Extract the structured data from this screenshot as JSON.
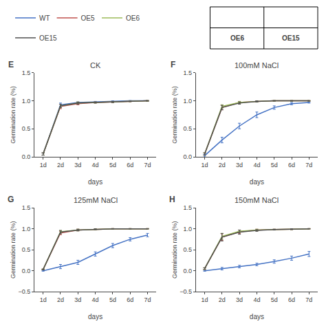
{
  "chart_data": [
    {
      "type": "line",
      "title": "CK",
      "annotations": [
        "E"
      ],
      "x": [
        1,
        2,
        3,
        4,
        5,
        6,
        7
      ],
      "xlabel": "days",
      "ylabel": "Germination rate (%)",
      "xlim": [
        0.5,
        7.5
      ],
      "xticks": [
        {
          "value": 1,
          "label": "1d"
        },
        {
          "value": 2,
          "label": "2d"
        },
        {
          "value": 3,
          "label": "3d"
        },
        {
          "value": 4,
          "label": "4d"
        },
        {
          "value": 5,
          "label": "5d"
        },
        {
          "value": 6,
          "label": "6d"
        },
        {
          "value": 7,
          "label": "7d"
        }
      ],
      "ylim": [
        0,
        1.5
      ],
      "yticks": [
        {
          "value": 0,
          "label": "0.0"
        },
        0.5,
        {
          "value": 1.0,
          "label": "1.0"
        },
        1.5
      ],
      "grid": false,
      "legend": "top",
      "series": [
        {
          "name": "WT",
          "color": "#4472C4",
          "values": [
            0.05,
            0.93,
            0.97,
            0.98,
            0.99,
            1.0,
            1.0
          ],
          "errors": [
            0.02,
            0.03,
            0.01,
            0.01,
            0.01,
            0.005,
            0.005
          ]
        },
        {
          "name": "OE5",
          "color": "#C0504D",
          "values": [
            0.05,
            0.9,
            0.95,
            0.97,
            0.98,
            0.99,
            1.0
          ],
          "errors": [
            0.02,
            0.04,
            0.02,
            0.01,
            0.01,
            0.005,
            0.005
          ]
        },
        {
          "name": "OE6",
          "color": "#9BBB59",
          "values": [
            0.05,
            0.91,
            0.96,
            0.97,
            0.98,
            0.99,
            1.0
          ],
          "errors": [
            0.02,
            0.03,
            0.02,
            0.01,
            0.01,
            0.005,
            0.005
          ]
        },
        {
          "name": "OE15",
          "color": "#4F4F4F",
          "values": [
            0.05,
            0.91,
            0.96,
            0.97,
            0.98,
            0.99,
            1.0
          ],
          "errors": [
            0.02,
            0.03,
            0.02,
            0.01,
            0.01,
            0.005,
            0.005
          ]
        }
      ]
    },
    {
      "type": "line",
      "title": "100mM NaCl",
      "annotations": [
        "F"
      ],
      "x": [
        1,
        2,
        3,
        4,
        5,
        6,
        7
      ],
      "xlabel": "days",
      "ylabel": "Germination rate (%)",
      "xlim": [
        0.5,
        7.5
      ],
      "xticks": [
        {
          "value": 1,
          "label": "1d"
        },
        {
          "value": 2,
          "label": "2d"
        },
        {
          "value": 3,
          "label": "3d"
        },
        {
          "value": 4,
          "label": "4d"
        },
        {
          "value": 5,
          "label": "5d"
        },
        {
          "value": 6,
          "label": "6d"
        },
        {
          "value": 7,
          "label": "7d"
        }
      ],
      "ylim": [
        0,
        1.5
      ],
      "yticks": [
        {
          "value": 0,
          "label": "0.0"
        },
        0.5,
        {
          "value": 1.0,
          "label": "1.0"
        },
        1.5
      ],
      "grid": false,
      "legend": "top",
      "series": [
        {
          "name": "WT",
          "color": "#4472C4",
          "values": [
            0.02,
            0.3,
            0.55,
            0.75,
            0.88,
            0.95,
            0.97
          ],
          "errors": [
            0.02,
            0.05,
            0.05,
            0.05,
            0.03,
            0.02,
            0.01
          ]
        },
        {
          "name": "OE5",
          "color": "#C0504D",
          "values": [
            0.05,
            0.88,
            0.97,
            0.99,
            1.0,
            1.0,
            1.0
          ],
          "errors": [
            0.02,
            0.04,
            0.02,
            0.01,
            0.005,
            0.005,
            0.005
          ]
        },
        {
          "name": "OE6",
          "color": "#9BBB59",
          "values": [
            0.05,
            0.9,
            0.97,
            0.99,
            1.0,
            1.0,
            1.0
          ],
          "errors": [
            0.02,
            0.03,
            0.02,
            0.01,
            0.005,
            0.005,
            0.005
          ]
        },
        {
          "name": "OE15",
          "color": "#4F4F4F",
          "values": [
            0.05,
            0.88,
            0.96,
            0.99,
            1.0,
            1.0,
            1.0
          ],
          "errors": [
            0.02,
            0.04,
            0.02,
            0.01,
            0.005,
            0.005,
            0.005
          ]
        }
      ]
    },
    {
      "type": "line",
      "title": "125mM NaCl",
      "annotations": [
        "G"
      ],
      "x": [
        1,
        2,
        3,
        4,
        5,
        6,
        7
      ],
      "xlabel": "days",
      "ylabel": "Germination rate (%)",
      "xlim": [
        0.5,
        7.5
      ],
      "xticks": [
        {
          "value": 1,
          "label": "1d"
        },
        {
          "value": 2,
          "label": "2d"
        },
        {
          "value": 3,
          "label": "3d"
        },
        {
          "value": 4,
          "label": "4d"
        },
        {
          "value": 5,
          "label": "5d"
        },
        {
          "value": 6,
          "label": "6d"
        },
        {
          "value": 7,
          "label": "7d"
        }
      ],
      "ylim": [
        -0.5,
        1.5
      ],
      "yticks": [
        {
          "value": -0.5,
          "label": "−0.5"
        },
        {
          "value": 0,
          "label": "0.0"
        },
        0.5,
        {
          "value": 1.0,
          "label": "1.0"
        },
        1.5
      ],
      "grid": false,
      "legend": "top",
      "series": [
        {
          "name": "WT",
          "color": "#4472C4",
          "values": [
            0.0,
            0.1,
            0.2,
            0.4,
            0.6,
            0.75,
            0.85
          ],
          "errors": [
            0.01,
            0.05,
            0.05,
            0.05,
            0.05,
            0.04,
            0.04
          ]
        },
        {
          "name": "OE5",
          "color": "#C0504D",
          "values": [
            0.03,
            0.9,
            0.97,
            0.99,
            1.0,
            1.0,
            1.0
          ],
          "errors": [
            0.01,
            0.04,
            0.02,
            0.01,
            0.005,
            0.005,
            0.005
          ]
        },
        {
          "name": "OE6",
          "color": "#9BBB59",
          "values": [
            0.03,
            0.93,
            0.97,
            0.99,
            1.0,
            1.0,
            1.0
          ],
          "errors": [
            0.01,
            0.03,
            0.02,
            0.01,
            0.005,
            0.005,
            0.005
          ]
        },
        {
          "name": "OE15",
          "color": "#4F4F4F",
          "values": [
            0.03,
            0.92,
            0.97,
            0.99,
            1.0,
            1.0,
            1.0
          ],
          "errors": [
            0.01,
            0.04,
            0.02,
            0.01,
            0.005,
            0.005,
            0.005
          ]
        }
      ]
    },
    {
      "type": "line",
      "title": "150mM NaCl",
      "annotations": [
        "H"
      ],
      "x": [
        1,
        2,
        3,
        4,
        5,
        6,
        7
      ],
      "xlabel": "days",
      "ylabel": "Germination rate (%)",
      "xlim": [
        0.5,
        7.5
      ],
      "xticks": [
        {
          "value": 1,
          "label": "1d"
        },
        {
          "value": 2,
          "label": "2d"
        },
        {
          "value": 3,
          "label": "3d"
        },
        {
          "value": 4,
          "label": "4d"
        },
        {
          "value": 5,
          "label": "5d"
        },
        {
          "value": 6,
          "label": "6d"
        },
        {
          "value": 7,
          "label": "7d"
        }
      ],
      "ylim": [
        -0.5,
        1.5
      ],
      "yticks": [
        {
          "value": -0.5,
          "label": "−0.5"
        },
        {
          "value": 0,
          "label": "0.0"
        },
        0.5,
        {
          "value": 1.0,
          "label": "1.0"
        },
        1.5
      ],
      "grid": false,
      "legend": "top",
      "series": [
        {
          "name": "WT",
          "color": "#4472C4",
          "values": [
            0.0,
            0.05,
            0.1,
            0.15,
            0.22,
            0.3,
            0.4
          ],
          "errors": [
            0.01,
            0.03,
            0.03,
            0.03,
            0.04,
            0.05,
            0.06
          ]
        },
        {
          "name": "OE5",
          "color": "#C0504D",
          "values": [
            0.05,
            0.8,
            0.93,
            0.97,
            0.98,
            0.99,
            1.0
          ],
          "errors": [
            0.02,
            0.08,
            0.04,
            0.02,
            0.01,
            0.01,
            0.005
          ]
        },
        {
          "name": "OE6",
          "color": "#9BBB59",
          "values": [
            0.05,
            0.82,
            0.94,
            0.97,
            0.98,
            0.99,
            1.0
          ],
          "errors": [
            0.02,
            0.07,
            0.03,
            0.02,
            0.01,
            0.01,
            0.005
          ]
        },
        {
          "name": "OE15",
          "color": "#4F4F4F",
          "values": [
            0.05,
            0.8,
            0.92,
            0.96,
            0.98,
            0.99,
            1.0
          ],
          "errors": [
            0.02,
            0.09,
            0.05,
            0.02,
            0.01,
            0.01,
            0.005
          ]
        }
      ]
    }
  ],
  "annotations": [
    "OE6",
    "OE15"
  ]
}
